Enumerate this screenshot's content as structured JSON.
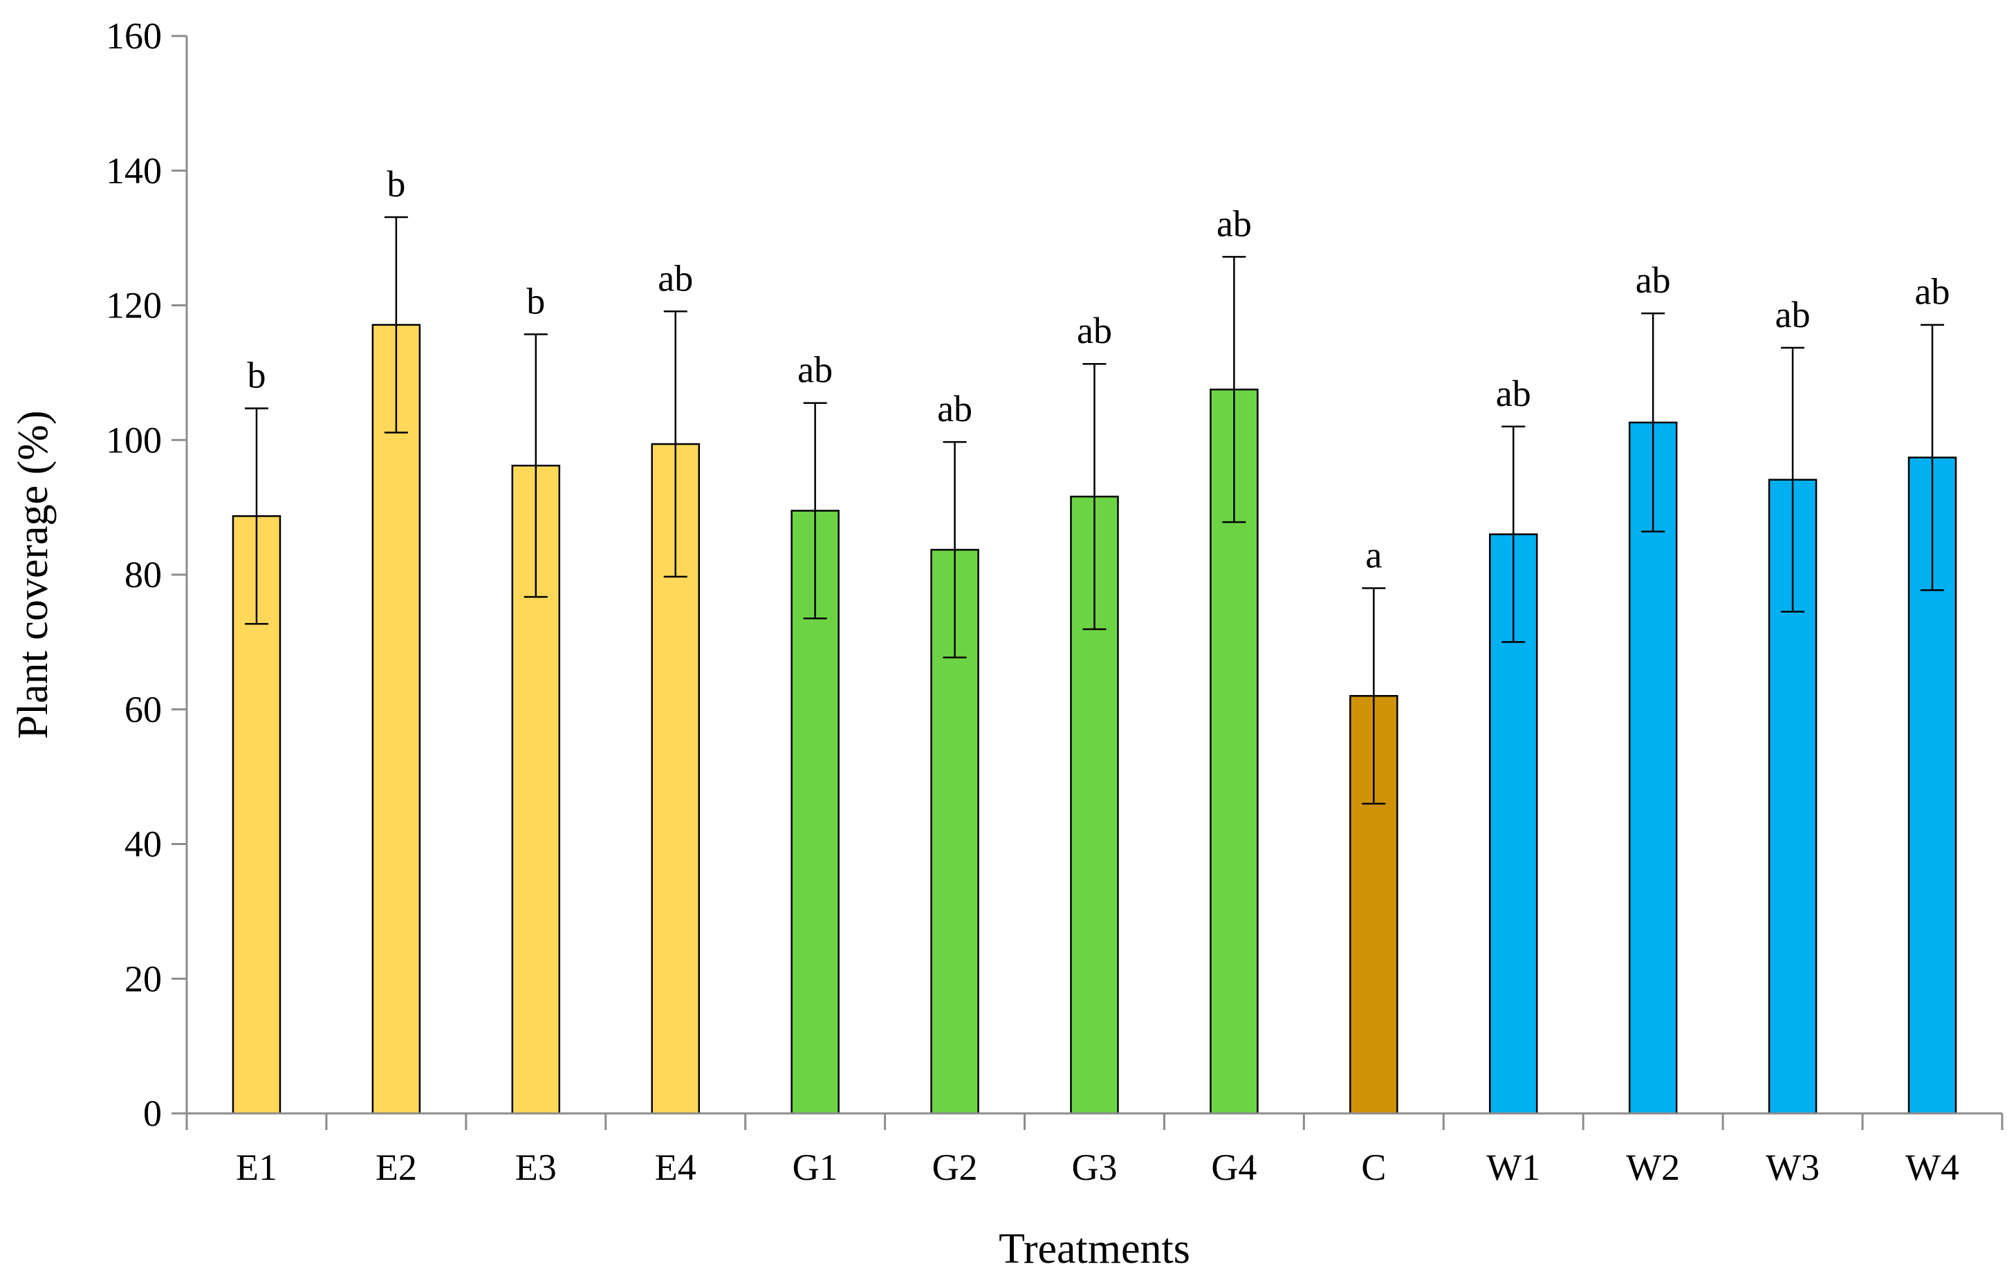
{
  "chart_data": {
    "type": "bar",
    "title": "",
    "xlabel": "Treatments",
    "ylabel": "Plant coverage (%)",
    "ylim": [
      0,
      160
    ],
    "yticks": [
      0,
      20,
      40,
      60,
      80,
      100,
      120,
      140,
      160
    ],
    "grid": false,
    "categories": [
      "E1",
      "E2",
      "E3",
      "E4",
      "G1",
      "G2",
      "G3",
      "G4",
      "C",
      "W1",
      "W2",
      "W3",
      "W4"
    ],
    "values": [
      88.7,
      117.1,
      96.2,
      99.4,
      89.5,
      83.7,
      91.6,
      107.5,
      62.0,
      86.0,
      102.6,
      94.1,
      97.4
    ],
    "errors": [
      16.0,
      16.0,
      19.5,
      19.7,
      16.0,
      16.0,
      19.7,
      19.7,
      16.0,
      16.0,
      16.2,
      19.6,
      19.7
    ],
    "significance": [
      "b",
      "b",
      "b",
      "ab",
      "ab",
      "ab",
      "ab",
      "ab",
      "a",
      "ab",
      "ab",
      "ab",
      "ab"
    ],
    "colors": [
      "#FFD85A",
      "#FFD85A",
      "#FFD85A",
      "#FFD85A",
      "#6CD444",
      "#6CD444",
      "#6CD444",
      "#6CD444",
      "#CF9106",
      "#00B0F0",
      "#00B0F0",
      "#00B0F0",
      "#00B0F0"
    ]
  }
}
